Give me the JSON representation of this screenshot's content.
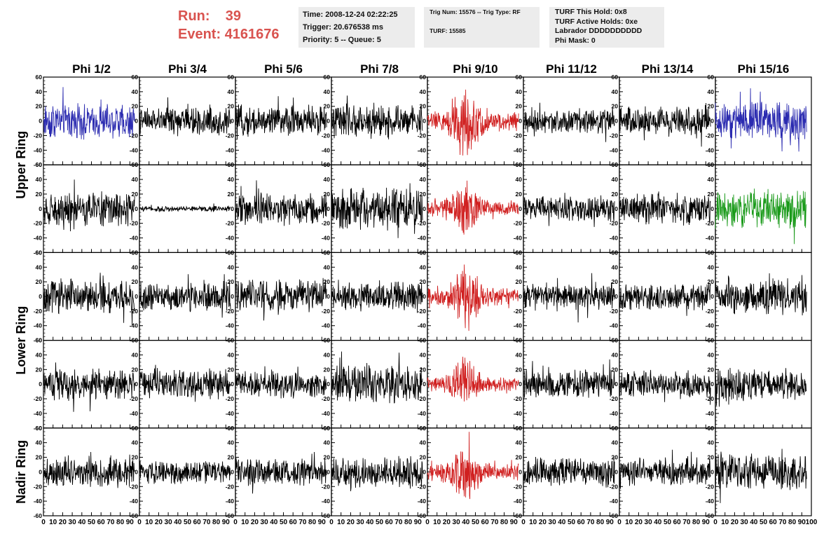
{
  "header": {
    "run_label": "Run:",
    "run_value": "39",
    "event_label": "Event:",
    "event_value": "4161676"
  },
  "info_boxes": {
    "timing": [
      "Time: 2008-12-24 02:22:25",
      "Trigger: 20.676538 ms",
      "Priority: 5 -- Queue: 5"
    ],
    "trigger": [
      "Trig Num: 15576 -- Trig Type: RF",
      "TURF: 15585"
    ],
    "turf": [
      "TURF This Hold: 0x8",
      "TURF Active Holds: 0xe",
      "Labrador DDDDDDDDDD",
      "Phi Mask: 0"
    ]
  },
  "colors": {
    "accent_text": "#d9534f",
    "info_bg": "#ececec",
    "trace_default": "#000000",
    "trace_blue": "#2b2bb0",
    "trace_red": "#d02020",
    "trace_green": "#1a9a1a"
  },
  "chart_data": {
    "type": "line",
    "title": "",
    "columns": [
      "Phi 1/2",
      "Phi 3/4",
      "Phi 5/6",
      "Phi 7/8",
      "Phi 9/10",
      "Phi 11/12",
      "Phi 13/14",
      "Phi 15/16"
    ],
    "row_labels": [
      "Upper Ring",
      "Lower Ring",
      "Nadir Ring"
    ],
    "panel_rows": 5,
    "ring_row_spans": [
      [
        0,
        1
      ],
      [
        2,
        3
      ],
      [
        4,
        4
      ]
    ],
    "xlim": [
      0,
      100
    ],
    "ylim": [
      -60,
      60
    ],
    "x_ticks": [
      0,
      10,
      20,
      30,
      40,
      50,
      60,
      70,
      80,
      90,
      100
    ],
    "y_ticks": [
      -60,
      -40,
      -20,
      0,
      20,
      40,
      60
    ],
    "x_tick_labels": [
      "0",
      "10",
      "20",
      "30",
      "40",
      "50",
      "60",
      "70",
      "80",
      "90",
      "100"
    ],
    "y_tick_labels": [
      "-60",
      "-40",
      "-20",
      "0",
      "20",
      "40",
      "60"
    ],
    "trace_x_extent": [
      0,
      95
    ],
    "panels": [
      {
        "row": 0,
        "col": 0,
        "color": "blue",
        "amplitude": 18
      },
      {
        "row": 0,
        "col": 1,
        "color": "black",
        "amplitude": 14
      },
      {
        "row": 0,
        "col": 2,
        "color": "black",
        "amplitude": 16
      },
      {
        "row": 0,
        "col": 3,
        "color": "black",
        "amplitude": 17
      },
      {
        "row": 0,
        "col": 4,
        "color": "red",
        "amplitude": 30,
        "pulse_center": 40
      },
      {
        "row": 0,
        "col": 5,
        "color": "black",
        "amplitude": 13
      },
      {
        "row": 0,
        "col": 6,
        "color": "black",
        "amplitude": 15
      },
      {
        "row": 0,
        "col": 7,
        "color": "blue",
        "amplitude": 20
      },
      {
        "row": 1,
        "col": 0,
        "color": "black",
        "amplitude": 17
      },
      {
        "row": 1,
        "col": 1,
        "color": "black",
        "amplitude": 3
      },
      {
        "row": 1,
        "col": 2,
        "color": "black",
        "amplitude": 17
      },
      {
        "row": 1,
        "col": 3,
        "color": "black",
        "amplitude": 22
      },
      {
        "row": 1,
        "col": 4,
        "color": "red",
        "amplitude": 22,
        "pulse_center": 40
      },
      {
        "row": 1,
        "col": 5,
        "color": "black",
        "amplitude": 13
      },
      {
        "row": 1,
        "col": 6,
        "color": "black",
        "amplitude": 16
      },
      {
        "row": 1,
        "col": 7,
        "color": "green",
        "amplitude": 20
      },
      {
        "row": 2,
        "col": 0,
        "color": "black",
        "amplitude": 17
      },
      {
        "row": 2,
        "col": 1,
        "color": "black",
        "amplitude": 15
      },
      {
        "row": 2,
        "col": 2,
        "color": "black",
        "amplitude": 18
      },
      {
        "row": 2,
        "col": 3,
        "color": "black",
        "amplitude": 16
      },
      {
        "row": 2,
        "col": 4,
        "color": "red",
        "amplitude": 25,
        "pulse_center": 40
      },
      {
        "row": 2,
        "col": 5,
        "color": "black",
        "amplitude": 14
      },
      {
        "row": 2,
        "col": 6,
        "color": "black",
        "amplitude": 14
      },
      {
        "row": 2,
        "col": 7,
        "color": "black",
        "amplitude": 18
      },
      {
        "row": 3,
        "col": 0,
        "color": "black",
        "amplitude": 16
      },
      {
        "row": 3,
        "col": 1,
        "color": "black",
        "amplitude": 15
      },
      {
        "row": 3,
        "col": 2,
        "color": "black",
        "amplitude": 14
      },
      {
        "row": 3,
        "col": 3,
        "color": "black",
        "amplitude": 20
      },
      {
        "row": 3,
        "col": 4,
        "color": "red",
        "amplitude": 22,
        "pulse_center": 38
      },
      {
        "row": 3,
        "col": 5,
        "color": "black",
        "amplitude": 14
      },
      {
        "row": 3,
        "col": 6,
        "color": "black",
        "amplitude": 14
      },
      {
        "row": 3,
        "col": 7,
        "color": "black",
        "amplitude": 16
      },
      {
        "row": 4,
        "col": 0,
        "color": "black",
        "amplitude": 16
      },
      {
        "row": 4,
        "col": 1,
        "color": "black",
        "amplitude": 12
      },
      {
        "row": 4,
        "col": 2,
        "color": "black",
        "amplitude": 14
      },
      {
        "row": 4,
        "col": 3,
        "color": "black",
        "amplitude": 16
      },
      {
        "row": 4,
        "col": 4,
        "color": "red",
        "amplitude": 24,
        "pulse_center": 40
      },
      {
        "row": 4,
        "col": 5,
        "color": "black",
        "amplitude": 15
      },
      {
        "row": 4,
        "col": 6,
        "color": "black",
        "amplitude": 14
      },
      {
        "row": 4,
        "col": 7,
        "color": "black",
        "amplitude": 18
      }
    ]
  }
}
